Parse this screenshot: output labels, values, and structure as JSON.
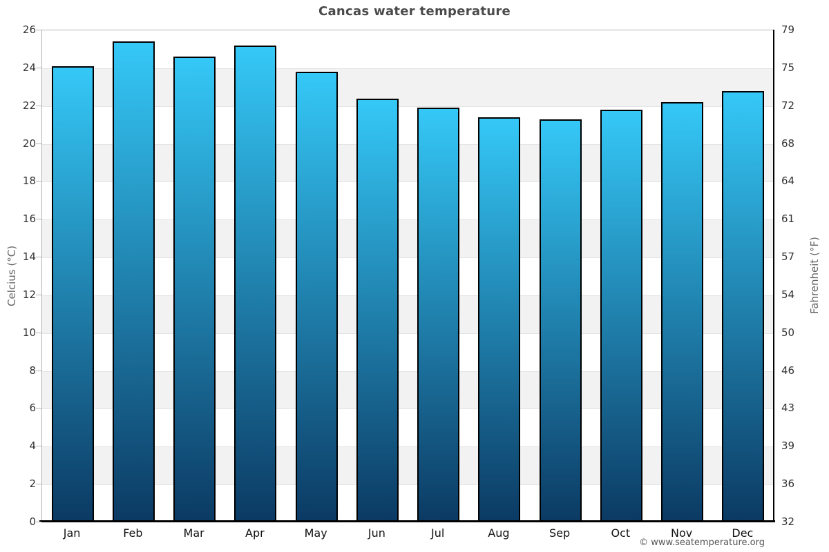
{
  "chart_data": {
    "type": "bar",
    "title": "Cancas water temperature",
    "xlabel": "",
    "ylabel_left": "Celcius (°C)",
    "ylabel_right": "Fahrenheit (°F)",
    "categories": [
      "Jan",
      "Feb",
      "Mar",
      "Apr",
      "May",
      "Jun",
      "Jul",
      "Aug",
      "Sep",
      "Oct",
      "Nov",
      "Dec"
    ],
    "values": [
      24.1,
      25.4,
      24.6,
      25.2,
      23.8,
      22.4,
      21.9,
      21.4,
      21.3,
      21.8,
      22.2,
      22.8
    ],
    "units": "°C",
    "ylim_celsius": [
      0,
      26
    ],
    "celsius_ticks": [
      0,
      2,
      4,
      6,
      8,
      10,
      12,
      14,
      16,
      18,
      20,
      22,
      24,
      26
    ],
    "fahrenheit_ticks": [
      32,
      36,
      39,
      43,
      46,
      50,
      54,
      57,
      61,
      64,
      68,
      72,
      75,
      79
    ],
    "legend": "none",
    "grid": "banded-horizontal",
    "band_color": "#f2f2f2",
    "bar_gradient_top": "#35c8f7",
    "bar_gradient_bottom": "#0b3a63",
    "bar_border_color": "#000000"
  },
  "footer": {
    "copyright": "© www.seatemperature.org"
  }
}
